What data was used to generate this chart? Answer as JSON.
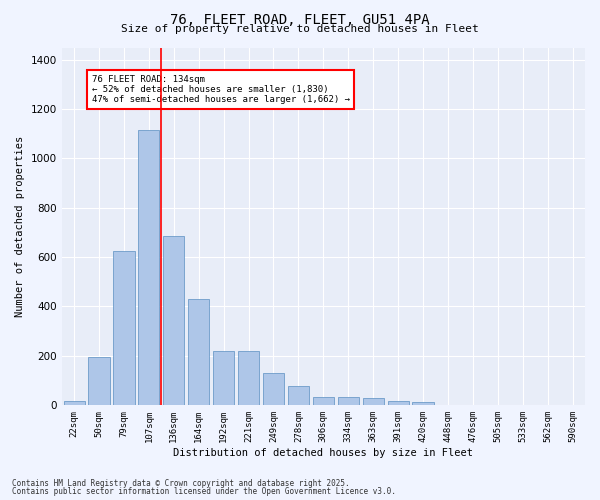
{
  "title_line1": "76, FLEET ROAD, FLEET, GU51 4PA",
  "title_line2": "Size of property relative to detached houses in Fleet",
  "xlabel": "Distribution of detached houses by size in Fleet",
  "ylabel": "Number of detached properties",
  "categories": [
    "22sqm",
    "50sqm",
    "79sqm",
    "107sqm",
    "136sqm",
    "164sqm",
    "192sqm",
    "221sqm",
    "249sqm",
    "278sqm",
    "306sqm",
    "334sqm",
    "363sqm",
    "391sqm",
    "420sqm",
    "448sqm",
    "476sqm",
    "505sqm",
    "533sqm",
    "562sqm",
    "590sqm"
  ],
  "values": [
    15,
    195,
    625,
    1115,
    685,
    430,
    218,
    218,
    130,
    78,
    32,
    32,
    28,
    15,
    10,
    0,
    0,
    0,
    0,
    0,
    0
  ],
  "bar_color": "#aec6e8",
  "bar_edge_color": "#5a8fc2",
  "background_color": "#e8edf8",
  "grid_color": "#ffffff",
  "vline_x_index": 4,
  "vline_color": "red",
  "annotation_text": "76 FLEET ROAD: 134sqm\n← 52% of detached houses are smaller (1,830)\n47% of semi-detached houses are larger (1,662) →",
  "annotation_box_color": "red",
  "ylim": [
    0,
    1450
  ],
  "yticks": [
    0,
    200,
    400,
    600,
    800,
    1000,
    1200,
    1400
  ],
  "footer_line1": "Contains HM Land Registry data © Crown copyright and database right 2025.",
  "footer_line2": "Contains public sector information licensed under the Open Government Licence v3.0.",
  "fig_width": 6.0,
  "fig_height": 5.0,
  "dpi": 100
}
